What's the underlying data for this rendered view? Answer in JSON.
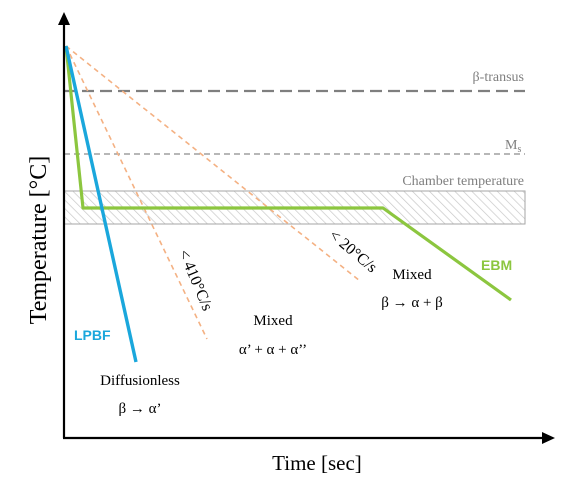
{
  "axes": {
    "x_label": "Time [sec]",
    "y_label": "Temperature [°C]"
  },
  "reference_lines": {
    "beta_transus": "β-transus",
    "ms_main": "M",
    "ms_sub": "s",
    "chamber_temperature": "Chamber temperature"
  },
  "curves": {
    "lpbf": "LPBF",
    "ebm": "EBM"
  },
  "rates": {
    "fast": "< 410°C/s",
    "slow": "< 20°C/s"
  },
  "regions": {
    "diffusionless_title": "Diffusionless",
    "diffusionless_phase": "β → α’",
    "mixed_mid_title": "Mixed",
    "mixed_mid_phase": "α’ + α + α’’",
    "mixed_right_title": "Mixed",
    "mixed_right_phase": "β → α + β"
  },
  "colors": {
    "lpbf": "#1aa7dc",
    "ebm": "#8cc63f",
    "rate_lines": "#f4b183",
    "reference": "#808080",
    "curve_labels_lpbf": "#1aa7dc",
    "curve_labels_ebm": "#8cc63f"
  }
}
